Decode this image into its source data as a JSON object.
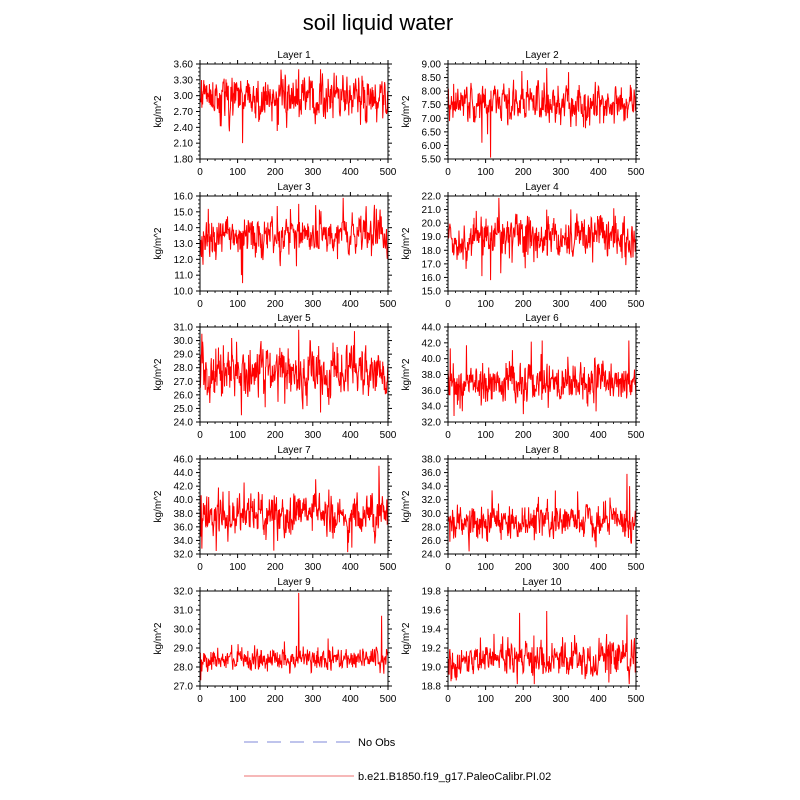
{
  "chart_data": {
    "type": "line",
    "title": "soil liquid water",
    "ylabel": "kg/m^2",
    "xlim": [
      0,
      500
    ],
    "x_ticks": [
      0,
      100,
      200,
      300,
      400,
      500
    ],
    "n_points": 500,
    "line_color": "#ff0000",
    "panels": [
      {
        "title": "Layer 1",
        "ylim": [
          1.8,
          3.6
        ],
        "yticks": [
          "3.60",
          "3.30",
          "3.00",
          "2.70",
          "2.40",
          "2.10",
          "1.80"
        ],
        "mean": 2.95,
        "amp": 0.25,
        "spikes": [
          {
            "x": 113,
            "y": 2.1
          },
          {
            "x": 262,
            "y": 3.5
          },
          {
            "x": 320,
            "y": 3.5
          }
        ]
      },
      {
        "title": "Layer 2",
        "ylim": [
          5.5,
          9.0
        ],
        "yticks": [
          "9.00",
          "8.50",
          "8.00",
          "7.50",
          "7.00",
          "6.50",
          "6.00",
          "5.50"
        ],
        "mean": 7.55,
        "amp": 0.45,
        "spikes": [
          {
            "x": 113,
            "y": 5.55
          },
          {
            "x": 90,
            "y": 6.1
          },
          {
            "x": 262,
            "y": 8.85
          },
          {
            "x": 320,
            "y": 8.7
          }
        ]
      },
      {
        "title": "Layer 3",
        "ylim": [
          10.0,
          16.0
        ],
        "yticks": [
          "16.0",
          "15.0",
          "14.0",
          "13.0",
          "12.0",
          "11.0",
          "10.0"
        ],
        "mean": 13.5,
        "amp": 0.75,
        "spikes": [
          {
            "x": 113,
            "y": 10.5
          },
          {
            "x": 262,
            "y": 15.5
          },
          {
            "x": 110,
            "y": 11.0
          }
        ]
      },
      {
        "title": "Layer 4",
        "ylim": [
          15.0,
          22.0
        ],
        "yticks": [
          "22.0",
          "21.0",
          "20.0",
          "19.0",
          "18.0",
          "17.0",
          "16.0",
          "15.0"
        ],
        "mean": 19.0,
        "amp": 0.95,
        "spikes": [
          {
            "x": 113,
            "y": 15.8
          },
          {
            "x": 90,
            "y": 16.1
          },
          {
            "x": 262,
            "y": 21.0
          },
          {
            "x": 440,
            "y": 21.1
          }
        ]
      },
      {
        "title": "Layer 5",
        "ylim": [
          24.0,
          31.0
        ],
        "yticks": [
          "31.0",
          "30.0",
          "29.0",
          "28.0",
          "27.0",
          "26.0",
          "25.0",
          "24.0"
        ],
        "mean": 27.7,
        "amp": 1.2,
        "spikes": [
          {
            "x": 5,
            "y": 30.5
          },
          {
            "x": 110,
            "y": 24.5
          },
          {
            "x": 262,
            "y": 30.8
          },
          {
            "x": 320,
            "y": 24.7
          },
          {
            "x": 410,
            "y": 30.7
          }
        ]
      },
      {
        "title": "Layer 6",
        "ylim": [
          32.0,
          44.0
        ],
        "yticks": [
          "44.0",
          "42.0",
          "40.0",
          "38.0",
          "36.0",
          "34.0",
          "32.0"
        ],
        "mean": 37.0,
        "amp": 1.6,
        "spikes": [
          {
            "x": 6,
            "y": 41.3
          },
          {
            "x": 200,
            "y": 33.0
          },
          {
            "x": 250,
            "y": 42.3
          },
          {
            "x": 480,
            "y": 42.3
          }
        ]
      },
      {
        "title": "Layer 7",
        "ylim": [
          32.0,
          46.0
        ],
        "yticks": [
          "46.0",
          "44.0",
          "42.0",
          "40.0",
          "38.0",
          "36.0",
          "34.0",
          "32.0"
        ],
        "mean": 37.8,
        "amp": 2.0,
        "spikes": [
          {
            "x": 5,
            "y": 32.8
          },
          {
            "x": 196,
            "y": 32.5
          },
          {
            "x": 475,
            "y": 45.0
          }
        ]
      },
      {
        "title": "Layer 8",
        "ylim": [
          24.0,
          38.0
        ],
        "yticks": [
          "38.0",
          "36.0",
          "34.0",
          "32.0",
          "30.0",
          "28.0",
          "26.0",
          "24.0"
        ],
        "mean": 29.0,
        "amp": 1.5,
        "spikes": [
          {
            "x": 5,
            "y": 25.8
          },
          {
            "x": 475,
            "y": 35.8
          },
          {
            "x": 482,
            "y": 34.0
          }
        ]
      },
      {
        "title": "Layer 9",
        "ylim": [
          27.0,
          32.0
        ],
        "yticks": [
          "32.0",
          "31.0",
          "30.0",
          "29.0",
          "28.0",
          "27.0"
        ],
        "mean": 28.4,
        "amp": 0.4,
        "spikes": [
          {
            "x": 2,
            "y": 27.3
          },
          {
            "x": 262,
            "y": 31.9
          },
          {
            "x": 482,
            "y": 30.7
          },
          {
            "x": 340,
            "y": 29.5
          }
        ]
      },
      {
        "title": "Layer 10",
        "ylim": [
          18.8,
          19.8
        ],
        "yticks": [
          "19.8",
          "19.6",
          "19.4",
          "19.2",
          "19.0",
          "18.8"
        ],
        "mean": 19.08,
        "amp": 0.12,
        "spikes": [
          {
            "x": 3,
            "y": 18.92
          },
          {
            "x": 190,
            "y": 19.57
          },
          {
            "x": 262,
            "y": 19.59
          },
          {
            "x": 475,
            "y": 19.55
          }
        ]
      }
    ],
    "legend": [
      {
        "label": "No Obs",
        "color": "#aab0e6",
        "style": "dashed"
      },
      {
        "label": "b.e21.B1850.f19_g17.PaleoCalibr.PI.02",
        "color": "#f4a0a0",
        "style": "solid"
      }
    ]
  }
}
